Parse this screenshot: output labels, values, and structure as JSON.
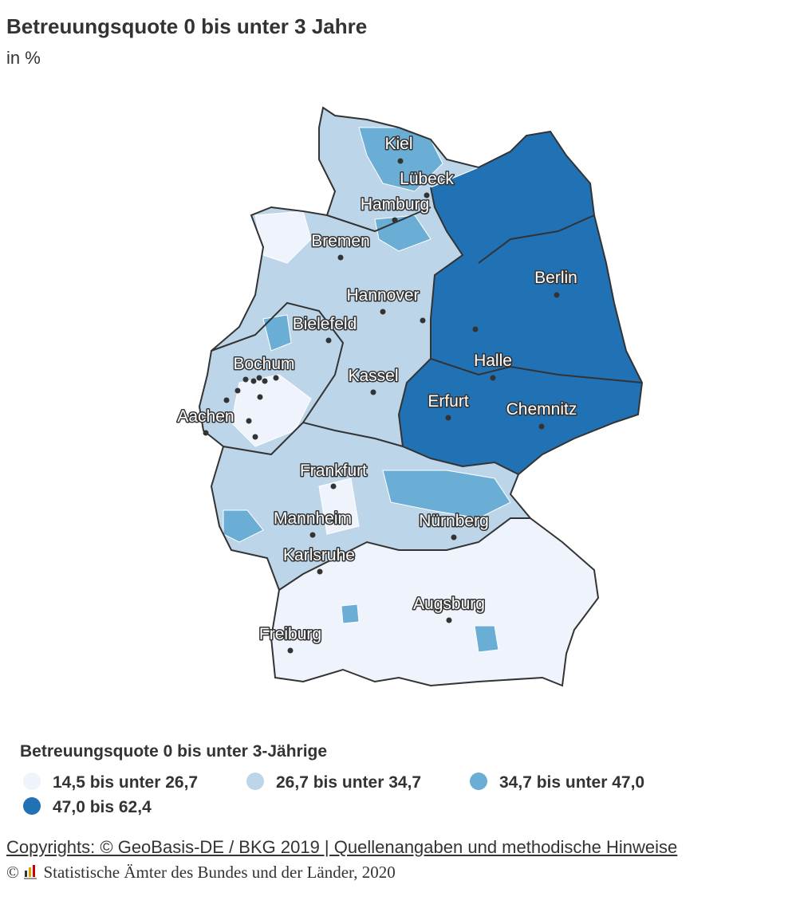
{
  "header": {
    "title": "Betreuungsquote 0 bis unter 3 Jahre",
    "subtitle": "in %"
  },
  "map": {
    "cities": [
      "Kiel",
      "Lübeck",
      "Hamburg",
      "Bremen",
      "Hannover",
      "Berlin",
      "Bielefeld",
      "Bochum",
      "Kassel",
      "Halle",
      "Aachen",
      "Erfurt",
      "Chemnitz",
      "Frankfurt",
      "Mannheim",
      "Nürnberg",
      "Karlsruhe",
      "Augsburg",
      "Freiburg"
    ]
  },
  "legend": {
    "title": "Betreuungsquote 0 bis unter 3-Jährige",
    "items": [
      {
        "label": "14,5 bis unter 26,7",
        "color": "#eef3fc"
      },
      {
        "label": "26,7 bis unter 34,7",
        "color": "#bcd5e8"
      },
      {
        "label": "34,7 bis unter 47,0",
        "color": "#6aaed6"
      },
      {
        "label": "47,0 bis 62,4",
        "color": "#2171b5"
      }
    ]
  },
  "footer": {
    "copyright": "Copyrights: © GeoBasis-DE / BKG 2019 | Quellenangaben und methodische Hinweise",
    "source_symbol": "©",
    "source": "Statistische Ämter des Bundes und der Länder, 2020"
  }
}
